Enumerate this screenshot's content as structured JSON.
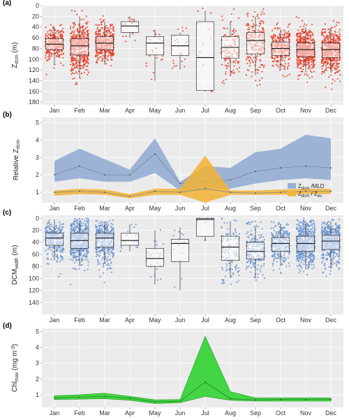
{
  "months": [
    "Jan",
    "Feb",
    "Mar",
    "Apr",
    "May",
    "Jun",
    "Jul",
    "Aug",
    "Sep",
    "Oct",
    "Nov",
    "Dec"
  ],
  "colors": {
    "red_points": "#e8402a",
    "blue_points": "#6a93cf",
    "mld_band": "#8fa9d1",
    "eu_band": "#f2b233",
    "chl_band": "#3ad43a",
    "panel_bg": "#ebebeb",
    "grid": "#ffffff"
  },
  "chart_data": [
    {
      "type": "box",
      "panel": "(a)",
      "ylabel": "Z",
      "ylabel_sub": "dcm",
      "ylabel_unit": "(m)",
      "y_reversed": true,
      "ylim": [
        0,
        185
      ],
      "yticks": [
        0,
        20,
        40,
        60,
        80,
        100,
        120,
        140,
        160,
        180
      ],
      "categories": [
        "Jan",
        "Feb",
        "Mar",
        "Apr",
        "May",
        "Jun",
        "Jul",
        "Aug",
        "Sep",
        "Oct",
        "Nov",
        "Dec"
      ],
      "boxes": [
        {
          "q1": 62,
          "median": 72,
          "q3": 82,
          "wlo": 40,
          "whi": 110,
          "n": 300,
          "ymin": 28,
          "ymax": 135
        },
        {
          "q1": 62,
          "median": 75,
          "q3": 92,
          "wlo": 20,
          "whi": 135,
          "n": 500,
          "ymin": 2,
          "ymax": 150
        },
        {
          "q1": 58,
          "median": 70,
          "q3": 82,
          "wlo": 30,
          "whi": 110,
          "n": 400,
          "ymin": 10,
          "ymax": 170
        },
        {
          "q1": 30,
          "median": 38,
          "q3": 50,
          "wlo": 20,
          "whi": 60,
          "n": 15,
          "ymin": 20,
          "ymax": 85
        },
        {
          "q1": 58,
          "median": 70,
          "q3": 92,
          "wlo": 45,
          "whi": 140,
          "n": 25,
          "ymin": 40,
          "ymax": 140
        },
        {
          "q1": 55,
          "median": 75,
          "q3": 93,
          "wlo": 50,
          "whi": 120,
          "n": 20,
          "ymin": 40,
          "ymax": 120
        },
        {
          "q1": 30,
          "median": 97,
          "q3": 158,
          "wlo": 10,
          "whi": 160,
          "n": 12,
          "ymin": 5,
          "ymax": 160
        },
        {
          "q1": 58,
          "median": 78,
          "q3": 98,
          "wlo": 30,
          "whi": 130,
          "n": 120,
          "ymin": 5,
          "ymax": 150
        },
        {
          "q1": 50,
          "median": 65,
          "q3": 90,
          "wlo": 20,
          "whi": 130,
          "n": 200,
          "ymin": 2,
          "ymax": 160
        },
        {
          "q1": 68,
          "median": 80,
          "q3": 93,
          "wlo": 45,
          "whi": 120,
          "n": 300,
          "ymin": 20,
          "ymax": 140
        },
        {
          "q1": 70,
          "median": 82,
          "q3": 95,
          "wlo": 40,
          "whi": 125,
          "n": 600,
          "ymin": 15,
          "ymax": 150
        },
        {
          "q1": 70,
          "median": 82,
          "q3": 97,
          "wlo": 45,
          "whi": 125,
          "n": 500,
          "ymin": 20,
          "ymax": 160
        }
      ]
    },
    {
      "type": "area",
      "panel": "(b)",
      "ylabel": "Relative Z",
      "ylabel_sub": "dcm",
      "ylim": [
        0.4,
        5.3
      ],
      "yticks": [
        1,
        2,
        3,
        4,
        5
      ],
      "categories": [
        "Jan",
        "Feb",
        "Mar",
        "Apr",
        "May",
        "Jun",
        "Jul",
        "Aug",
        "Sep",
        "Oct",
        "Nov",
        "Dec"
      ],
      "series": [
        {
          "legend": "Z",
          "legend_sub": "dcm",
          "legend_suffix": " /MLD",
          "lower": [
            1.6,
            1.8,
            1.6,
            1.6,
            2.1,
            1.1,
            1.2,
            1.2,
            1.5,
            1.7,
            1.8,
            1.7
          ],
          "median": [
            2.0,
            2.5,
            2.0,
            2.0,
            3.2,
            1.5,
            1.6,
            1.7,
            2.2,
            2.4,
            2.5,
            2.4
          ],
          "upper": [
            2.8,
            3.5,
            2.9,
            2.3,
            4.1,
            1.6,
            2.5,
            2.4,
            3.3,
            3.5,
            4.3,
            4.1
          ]
        },
        {
          "legend": "Z",
          "legend_sub": "dcm",
          "legend_suffix": " / Z",
          "legend_sub2": "eu",
          "lower": [
            0.8,
            0.9,
            0.85,
            0.65,
            0.85,
            0.85,
            0.4,
            0.85,
            0.85,
            0.85,
            0.9,
            0.9
          ],
          "median": [
            1.0,
            1.05,
            1.0,
            0.75,
            1.05,
            1.0,
            1.2,
            1.0,
            0.95,
            1.0,
            1.05,
            1.05
          ],
          "upper": [
            1.1,
            1.2,
            1.15,
            0.9,
            1.2,
            1.2,
            3.1,
            1.1,
            1.1,
            1.15,
            1.2,
            1.2
          ]
        }
      ]
    },
    {
      "type": "box",
      "panel": "(c)",
      "ylabel": "DCM",
      "ylabel_sub": "width",
      "ylabel_unit": "(m)",
      "y_reversed": true,
      "ylim": [
        -5,
        160
      ],
      "yticks": [
        0,
        20,
        40,
        60,
        80,
        100,
        120,
        140
      ],
      "categories": [
        "Jan",
        "Feb",
        "Mar",
        "Apr",
        "May",
        "Jun",
        "Jul",
        "Aug",
        "Sep",
        "Oct",
        "Nov",
        "Dec"
      ],
      "boxes": [
        {
          "q1": 25,
          "median": 33,
          "q3": 45,
          "wlo": 5,
          "whi": 70,
          "n": 300,
          "ymin": 2,
          "ymax": 100
        },
        {
          "q1": 25,
          "median": 37,
          "q3": 50,
          "wlo": 5,
          "whi": 80,
          "n": 500,
          "ymin": 0,
          "ymax": 130
        },
        {
          "q1": 25,
          "median": 33,
          "q3": 48,
          "wlo": 5,
          "whi": 75,
          "n": 400,
          "ymin": 0,
          "ymax": 130
        },
        {
          "q1": 25,
          "median": 37,
          "q3": 45,
          "wlo": 10,
          "whi": 55,
          "n": 15,
          "ymin": 10,
          "ymax": 55
        },
        {
          "q1": 50,
          "median": 67,
          "q3": 80,
          "wlo": 20,
          "whi": 110,
          "n": 25,
          "ymin": 10,
          "ymax": 110
        },
        {
          "q1": 35,
          "median": 42,
          "q3": 72,
          "wlo": 15,
          "whi": 120,
          "n": 20,
          "ymin": 15,
          "ymax": 120
        },
        {
          "q1": 0,
          "median": 2,
          "q3": 30,
          "wlo": 0,
          "whi": 38,
          "n": 10,
          "ymin": 0,
          "ymax": 38
        },
        {
          "q1": 30,
          "median": 48,
          "q3": 70,
          "wlo": 5,
          "whi": 100,
          "n": 120,
          "ymin": 0,
          "ymax": 110
        },
        {
          "q1": 40,
          "median": 55,
          "q3": 68,
          "wlo": 15,
          "whi": 100,
          "n": 200,
          "ymin": 5,
          "ymax": 150
        },
        {
          "q1": 32,
          "median": 42,
          "q3": 55,
          "wlo": 10,
          "whi": 80,
          "n": 300,
          "ymin": 5,
          "ymax": 110
        },
        {
          "q1": 30,
          "median": 42,
          "q3": 55,
          "wlo": 5,
          "whi": 85,
          "n": 600,
          "ymin": 0,
          "ymax": 135
        },
        {
          "q1": 28,
          "median": 38,
          "q3": 52,
          "wlo": 5,
          "whi": 80,
          "n": 500,
          "ymin": 0,
          "ymax": 120
        }
      ]
    },
    {
      "type": "area",
      "panel": "(d)",
      "ylabel": "Chl",
      "ylabel_sub": "max",
      "ylabel_unit": "(mg m",
      "ylabel_sup": "-3",
      "ylabel_end": ")",
      "ylim": [
        0.2,
        5.2
      ],
      "yticks": [
        1,
        2,
        3,
        4,
        5
      ],
      "categories": [
        "Jan",
        "Feb",
        "Mar",
        "Apr",
        "May",
        "Jun",
        "Jul",
        "Aug",
        "Sep",
        "Oct",
        "Nov",
        "Dec"
      ],
      "series": [
        {
          "lower": [
            0.7,
            0.72,
            0.75,
            0.65,
            0.45,
            0.5,
            0.9,
            0.65,
            0.6,
            0.6,
            0.6,
            0.6
          ],
          "median": [
            0.8,
            0.85,
            0.9,
            0.78,
            0.55,
            0.6,
            1.8,
            0.75,
            0.68,
            0.7,
            0.7,
            0.7
          ],
          "upper": [
            0.95,
            1.0,
            1.1,
            0.9,
            0.68,
            0.7,
            4.7,
            1.2,
            0.8,
            0.8,
            0.8,
            0.8
          ]
        }
      ]
    }
  ]
}
